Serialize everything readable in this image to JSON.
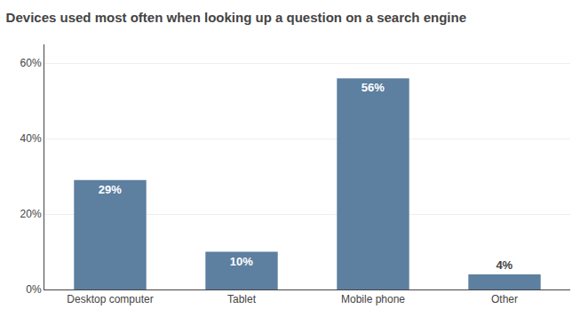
{
  "chart_data": {
    "type": "bar",
    "title": "Devices used most often when looking up a question on a search engine",
    "categories": [
      "Desktop computer",
      "Tablet",
      "Mobile phone",
      "Other"
    ],
    "values": [
      29,
      10,
      56,
      4
    ],
    "value_labels": [
      "29%",
      "10%",
      "56%",
      "4%"
    ],
    "data_labels": true,
    "color": "#5d7fa0",
    "ylim": [
      0,
      65
    ],
    "yticks": [
      {
        "value": 0,
        "label": "0%"
      },
      {
        "value": 20,
        "label": "20%"
      },
      {
        "value": 40,
        "label": "40%"
      },
      {
        "value": 60,
        "label": "60%"
      }
    ],
    "grid": true
  }
}
